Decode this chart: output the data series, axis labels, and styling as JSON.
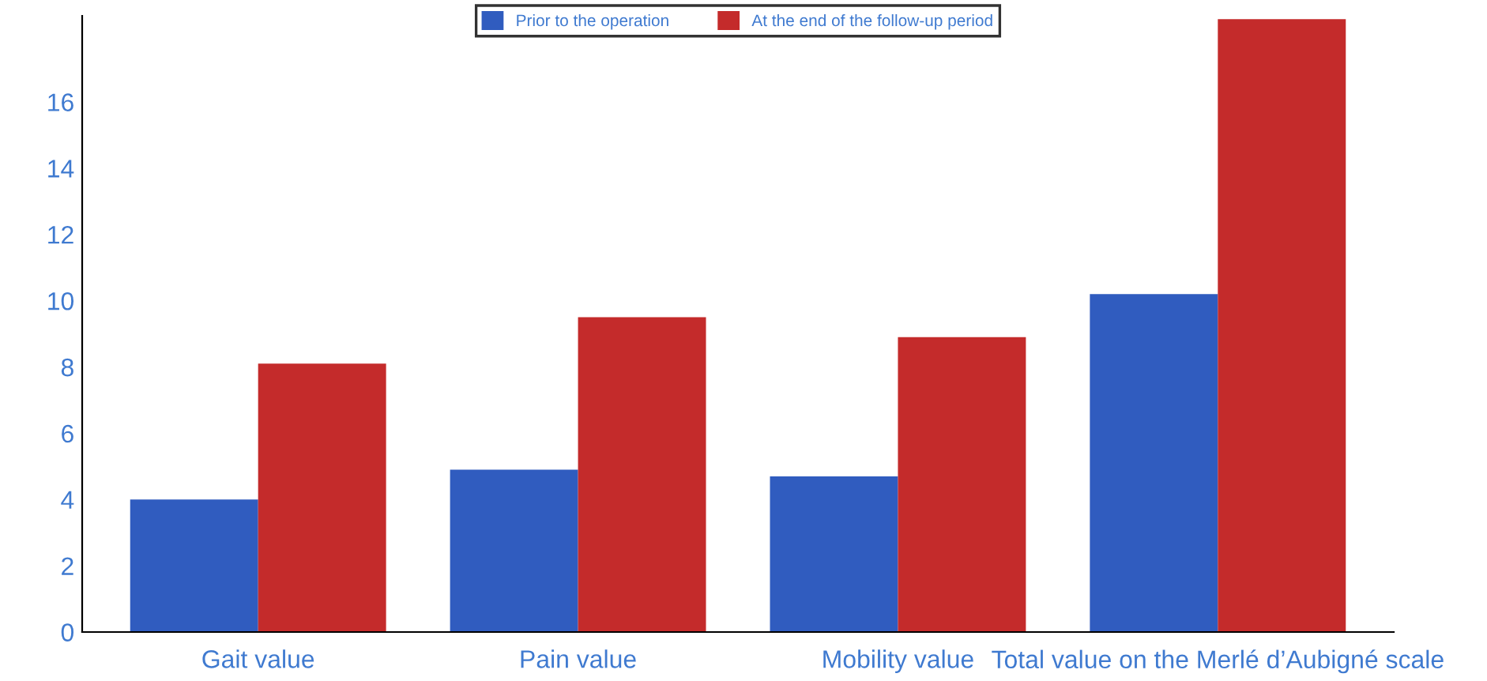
{
  "chart_data": {
    "type": "bar",
    "categories": [
      "Gait value",
      "Pain value",
      "Mobility value",
      "Total value on the Merlé d’Aubigné scale"
    ],
    "series": [
      {
        "name": "Prior to the operation",
        "color": "#305cbf",
        "values": [
          4.0,
          4.9,
          4.7,
          10.2
        ]
      },
      {
        "name": "At the end of the follow-up period",
        "color": "#c42b2b",
        "values": [
          8.1,
          9.5,
          8.9,
          18.5
        ]
      }
    ],
    "ylim": [
      0,
      18.6
    ],
    "yticks": [
      0,
      2,
      4,
      6,
      8,
      10,
      12,
      14,
      16
    ],
    "grid": false,
    "legend": "top"
  }
}
